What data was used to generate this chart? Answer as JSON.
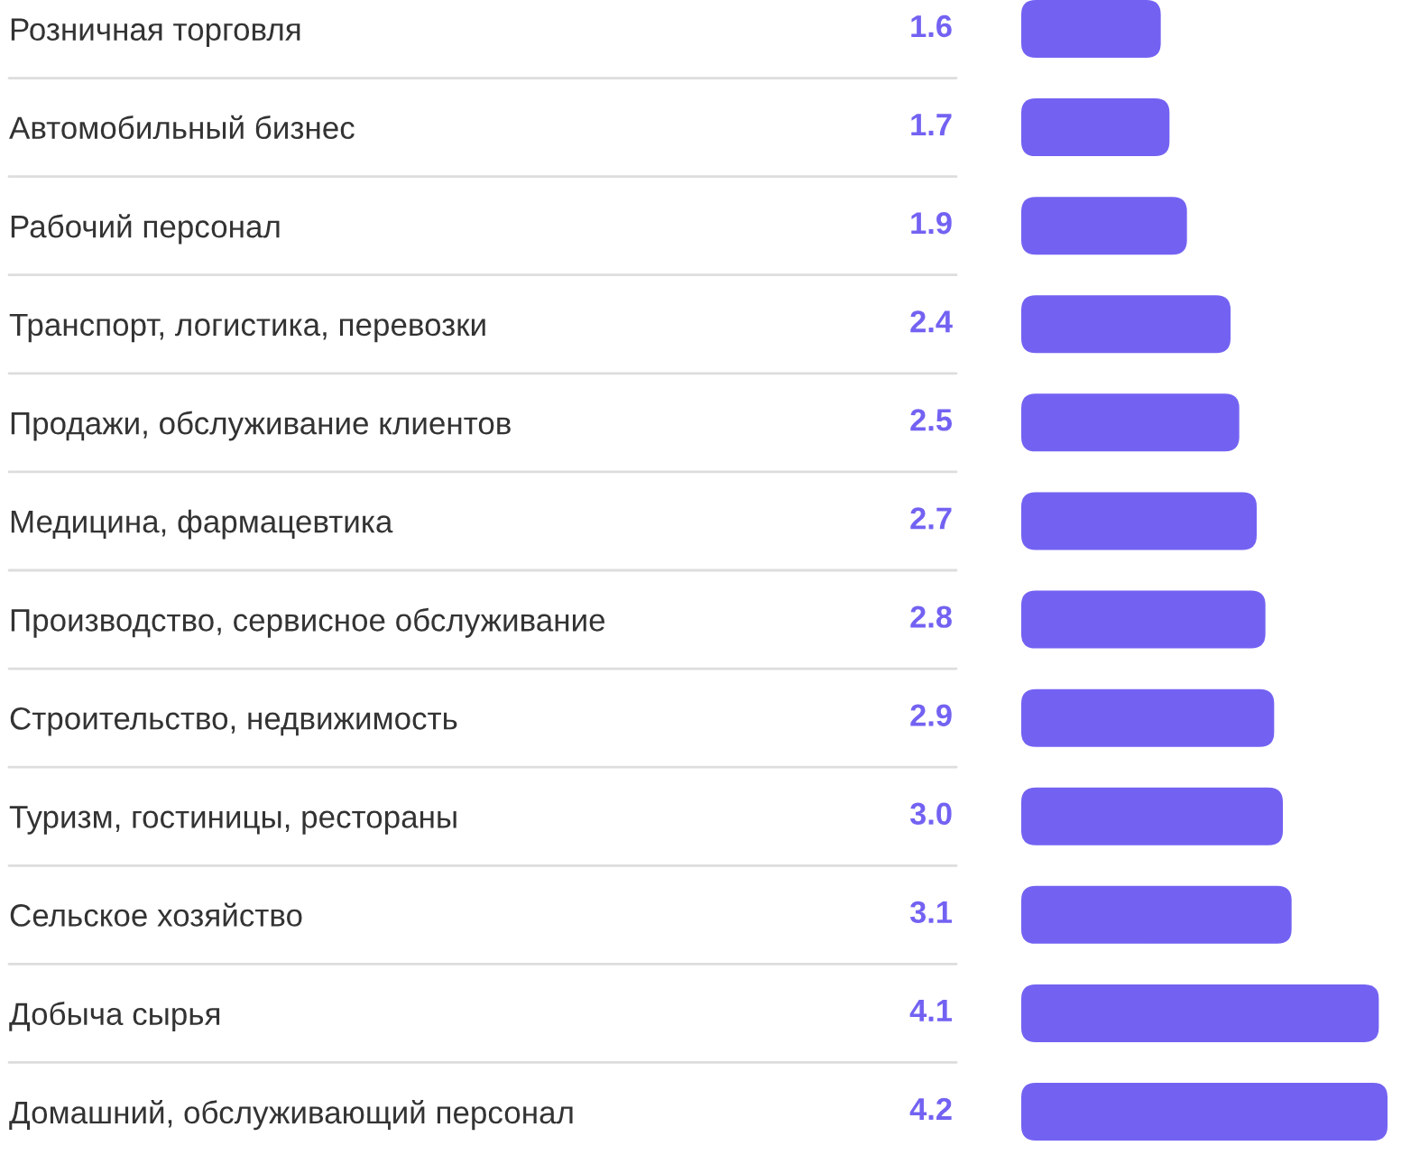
{
  "chart_data": {
    "type": "bar",
    "orientation": "horizontal",
    "categories": [
      "Розничная торговля",
      "Автомобильный бизнес",
      "Рабочий персонал",
      "Транспорт, логистика, перевозки",
      "Продажи, обслуживание клиентов",
      "Медицина, фармацевтика",
      "Производство, сервисное обслуживание",
      "Строительство, недвижимость",
      "Туризм, гостиницы, рестораны",
      "Сельское хозяйство",
      "Добыча сырья",
      "Домашний, обслуживающий персонал"
    ],
    "values": [
      1.6,
      1.7,
      1.9,
      2.4,
      2.5,
      2.7,
      2.8,
      2.9,
      3.0,
      3.1,
      4.1,
      4.2
    ],
    "value_labels": [
      "1.6",
      "1.7",
      "1.9",
      "2.4",
      "2.5",
      "2.7",
      "2.8",
      "2.9",
      "3.0",
      "3.1",
      "4.1",
      "4.2"
    ],
    "color": "#7362f2",
    "tick_labels": "y"
  }
}
